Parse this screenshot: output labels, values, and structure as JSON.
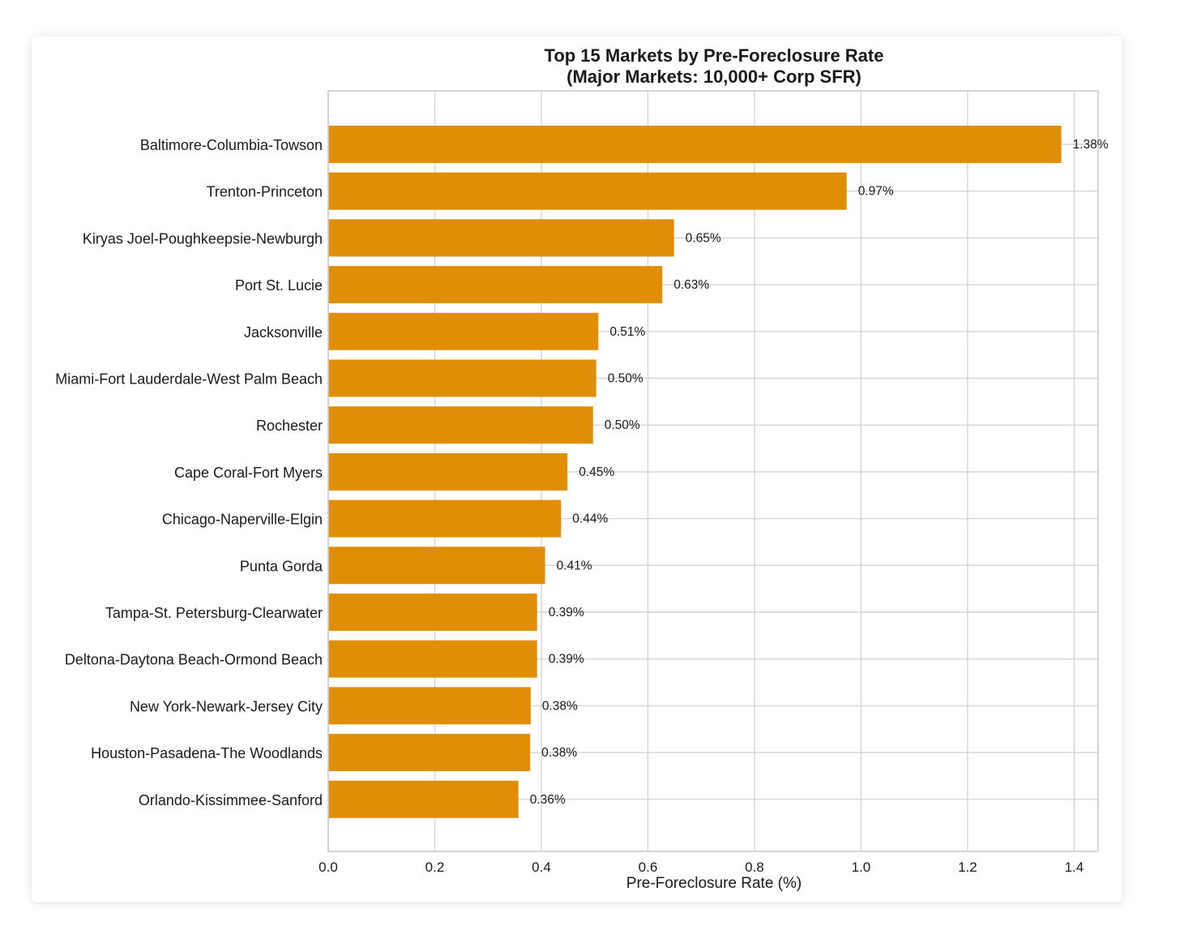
{
  "chart_data": {
    "type": "bar",
    "orientation": "horizontal",
    "title": "Top 15 Markets by Pre-Foreclosure Rate",
    "subtitle": "(Major Markets: 10,000+ Corp SFR)",
    "xlabel": "Pre-Foreclosure Rate (%)",
    "ylabel": "",
    "xlim": [
      0,
      1.445
    ],
    "xticks": [
      "0.0",
      "0.2",
      "0.4",
      "0.6",
      "0.8",
      "1.0",
      "1.2",
      "1.4"
    ],
    "grid": true,
    "bar_color": "#e08e06",
    "categories": [
      "Baltimore-Columbia-Towson",
      "Trenton-Princeton",
      "Kiryas Joel-Poughkeepsie-Newburgh",
      "Port St. Lucie",
      "Jacksonville",
      "Miami-Fort Lauderdale-West Palm Beach",
      "Rochester",
      "Cape Coral-Fort Myers",
      "Chicago-Naperville-Elgin",
      "Punta Gorda",
      "Tampa-St. Petersburg-Clearwater",
      "Deltona-Daytona Beach-Ormond Beach",
      "New York-Newark-Jersey City",
      "Houston-Pasadena-The Woodlands",
      "Orlando-Kissimmee-Sanford"
    ],
    "values": [
      1.376,
      0.973,
      0.649,
      0.627,
      0.507,
      0.503,
      0.497,
      0.449,
      0.437,
      0.407,
      0.392,
      0.392,
      0.38,
      0.379,
      0.357
    ],
    "value_labels": [
      "1.38%",
      "0.97%",
      "0.65%",
      "0.63%",
      "0.51%",
      "0.50%",
      "0.50%",
      "0.45%",
      "0.44%",
      "0.41%",
      "0.39%",
      "0.39%",
      "0.38%",
      "0.38%",
      "0.36%"
    ]
  }
}
